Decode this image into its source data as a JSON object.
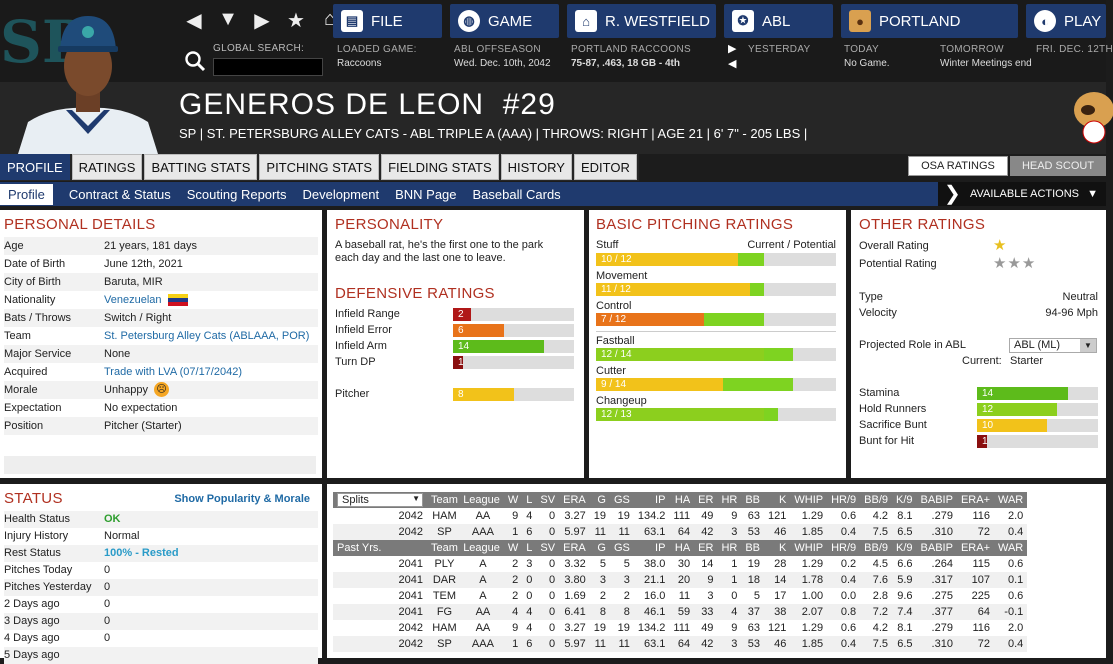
{
  "nav": {
    "global_search_label": "GLOBAL SEARCH:"
  },
  "menu": {
    "file": "FILE",
    "game": "GAME",
    "manager": "R. WESTFIELD",
    "league": "ABL",
    "team": "PORTLAND",
    "play": "PLAY"
  },
  "info": {
    "loaded_game_label": "LOADED GAME:",
    "loaded_game": "Raccoons",
    "season_label": "ABL OFFSEASON",
    "season_date": "Wed. Dec. 10th, 2042",
    "team_label": "PORTLAND RACCOONS",
    "team_record": "75-87, .463, 18 GB - 4th",
    "yesterday_label": "YESTERDAY",
    "today_label": "TODAY",
    "today_value": "No Game.",
    "tomorrow_label": "TOMORROW",
    "tomorrow_value": "Winter Meetings end",
    "friday_label": "FRI. DEC. 12TH"
  },
  "player": {
    "name": "GENEROS DE LEON",
    "number": "#29",
    "subtitle": "SP | ST. PETERSBURG ALLEY CATS - ABL TRIPLE A (AAA)  |  THROWS: RIGHT  |  AGE 21  |  6' 7\" - 205 LBS  |"
  },
  "tabs": [
    "PROFILE",
    "RATINGS",
    "BATTING STATS",
    "PITCHING STATS",
    "FIELDING STATS",
    "HISTORY",
    "EDITOR"
  ],
  "right_tabs": {
    "osa": "OSA RATINGS",
    "scout": "HEAD SCOUT"
  },
  "subnav": [
    "Profile",
    "Contract & Status",
    "Scouting Reports",
    "Development",
    "BNN Page",
    "Baseball Cards"
  ],
  "actions_label": "AVAILABLE ACTIONS",
  "personal": {
    "title": "PERSONAL DETAILS",
    "rows": [
      {
        "label": "Age",
        "value": "21 years, 181 days"
      },
      {
        "label": "Date of Birth",
        "value": "June 12th, 2021"
      },
      {
        "label": "City of Birth",
        "value": "Baruta, MIR"
      },
      {
        "label": "Nationality",
        "value": "Venezuelan"
      },
      {
        "label": "Bats / Throws",
        "value": "Switch / Right"
      },
      {
        "label": "Team",
        "value": "St. Petersburg Alley Cats (ABLAAA, POR)"
      },
      {
        "label": "Major Service",
        "value": "None"
      },
      {
        "label": "Acquired",
        "value": "Trade with LVA (07/17/2042)"
      },
      {
        "label": "Morale",
        "value": "Unhappy"
      },
      {
        "label": "Expectation",
        "value": "No expectation"
      },
      {
        "label": "Position",
        "value": "Pitcher (Starter)"
      }
    ]
  },
  "personality": {
    "title": "PERSONALITY",
    "text": "A baseball rat, he's the first one to the park each day and the last one to leave."
  },
  "defensive": {
    "title": "DEFENSIVE RATINGS",
    "rows": [
      {
        "label": "Infield Range",
        "value": "2",
        "frac": 0.15,
        "color": "#b01818"
      },
      {
        "label": "Infield Error",
        "value": "6",
        "frac": 0.42,
        "color": "#e8731a"
      },
      {
        "label": "Infield Arm",
        "value": "14",
        "frac": 0.75,
        "color": "#5dbb1b"
      },
      {
        "label": "Turn DP",
        "value": "1",
        "frac": 0.08,
        "color": "#8a0f0f"
      }
    ],
    "pitcher": {
      "label": "Pitcher",
      "value": "8",
      "frac": 0.5,
      "color": "#f2c21a"
    }
  },
  "pitching": {
    "title": "BASIC PITCHING RATINGS",
    "stuff_label": "Stuff",
    "cp_label": "Current / Potential",
    "rows": [
      {
        "label": "",
        "value": "10 / 12",
        "cur": 0.59,
        "pot": 0.7,
        "color": "#f2c21a"
      },
      {
        "label": "Movement",
        "value": "11 / 12",
        "cur": 0.64,
        "pot": 0.7,
        "color": "#f2c21a"
      },
      {
        "label": "Control",
        "value": "7 / 12",
        "cur": 0.45,
        "pot": 0.7,
        "color": "#e8731a"
      },
      {
        "label": "Fastball",
        "value": "12 / 14",
        "cur": 0.7,
        "pot": 0.82,
        "color": "#8ccf1e"
      },
      {
        "label": "Cutter",
        "value": "9 / 14",
        "cur": 0.53,
        "pot": 0.82,
        "color": "#f2c21a"
      },
      {
        "label": "Changeup",
        "value": "12 / 13",
        "cur": 0.7,
        "pot": 0.76,
        "color": "#8ccf1e"
      }
    ]
  },
  "other": {
    "title": "OTHER RATINGS",
    "overall_label": "Overall Rating",
    "potential_label": "Potential Rating",
    "type_label": "Type",
    "type_value": "Neutral",
    "velocity_label": "Velocity",
    "velocity_value": "94-96 Mph",
    "role_label": "Projected Role in ABL",
    "role_value": "ABL (ML)",
    "current_label": "Current:",
    "current_value": "Starter",
    "bars": [
      {
        "label": "Stamina",
        "value": "14",
        "frac": 0.75,
        "color": "#5dbb1b"
      },
      {
        "label": "Hold Runners",
        "value": "12",
        "frac": 0.66,
        "color": "#8ccf1e"
      },
      {
        "label": "Sacrifice Bunt",
        "value": "10",
        "frac": 0.58,
        "color": "#f2c21a"
      },
      {
        "label": "Bunt for Hit",
        "value": "1",
        "frac": 0.08,
        "color": "#8a0f0f"
      }
    ]
  },
  "status": {
    "title": "STATUS",
    "popularity_link": "Show Popularity & Morale",
    "rows": [
      {
        "label": "Health Status",
        "value": "OK"
      },
      {
        "label": "Injury History",
        "value": "Normal"
      },
      {
        "label": "Rest Status",
        "value": "100% - Rested"
      },
      {
        "label": "Pitches Today",
        "value": "0"
      },
      {
        "label": "Pitches Yesterday",
        "value": "0"
      },
      {
        "label": "2 Days ago",
        "value": "0"
      },
      {
        "label": "3 Days ago",
        "value": "0"
      },
      {
        "label": "4 Days ago",
        "value": "0"
      },
      {
        "label": "5 Days ago",
        "value": ""
      }
    ]
  },
  "stats": {
    "splits_label": "Splits",
    "past_label": "Past Yrs.",
    "headers": [
      "Team",
      "League",
      "W",
      "L",
      "SV",
      "ERA",
      "G",
      "GS",
      "IP",
      "HA",
      "ER",
      "HR",
      "BB",
      "K",
      "WHIP",
      "HR/9",
      "BB/9",
      "K/9",
      "BABIP",
      "ERA+",
      "WAR"
    ],
    "current": [
      [
        "2042",
        "HAM",
        "AA",
        "9",
        "4",
        "0",
        "3.27",
        "19",
        "19",
        "134.2",
        "111",
        "49",
        "9",
        "63",
        "121",
        "1.29",
        "0.6",
        "4.2",
        "8.1",
        ".279",
        "116",
        "2.0"
      ],
      [
        "2042",
        "SP",
        "AAA",
        "1",
        "6",
        "0",
        "5.97",
        "11",
        "11",
        "63.1",
        "64",
        "42",
        "3",
        "53",
        "46",
        "1.85",
        "0.4",
        "7.5",
        "6.5",
        ".310",
        "72",
        "0.4"
      ]
    ],
    "past": [
      [
        "2041",
        "PLY",
        "A",
        "2",
        "3",
        "0",
        "3.32",
        "5",
        "5",
        "38.0",
        "30",
        "14",
        "1",
        "19",
        "28",
        "1.29",
        "0.2",
        "4.5",
        "6.6",
        ".264",
        "115",
        "0.6"
      ],
      [
        "2041",
        "DAR",
        "A",
        "2",
        "0",
        "0",
        "3.80",
        "3",
        "3",
        "21.1",
        "20",
        "9",
        "1",
        "18",
        "14",
        "1.78",
        "0.4",
        "7.6",
        "5.9",
        ".317",
        "107",
        "0.1"
      ],
      [
        "2041",
        "TEM",
        "A",
        "2",
        "0",
        "0",
        "1.69",
        "2",
        "2",
        "16.0",
        "11",
        "3",
        "0",
        "5",
        "17",
        "1.00",
        "0.0",
        "2.8",
        "9.6",
        ".275",
        "225",
        "0.6"
      ],
      [
        "2041",
        "FG",
        "AA",
        "4",
        "4",
        "0",
        "6.41",
        "8",
        "8",
        "46.1",
        "59",
        "33",
        "4",
        "37",
        "38",
        "2.07",
        "0.8",
        "7.2",
        "7.4",
        ".377",
        "64",
        "-0.1"
      ],
      [
        "2042",
        "HAM",
        "AA",
        "9",
        "4",
        "0",
        "3.27",
        "19",
        "19",
        "134.2",
        "111",
        "49",
        "9",
        "63",
        "121",
        "1.29",
        "0.6",
        "4.2",
        "8.1",
        ".279",
        "116",
        "2.0"
      ],
      [
        "2042",
        "SP",
        "AAA",
        "1",
        "6",
        "0",
        "5.97",
        "11",
        "11",
        "63.1",
        "64",
        "42",
        "3",
        "53",
        "46",
        "1.85",
        "0.4",
        "7.5",
        "6.5",
        ".310",
        "72",
        "0.4"
      ]
    ]
  }
}
